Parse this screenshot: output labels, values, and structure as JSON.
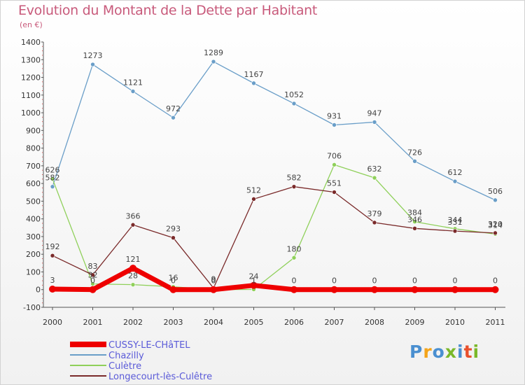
{
  "title": "Evolution du Montant de la Dette par Habitant",
  "subtitle": "(en €)",
  "logo": {
    "text": "Proxiti",
    "colors": [
      "#4a8fd0",
      "#f4a41a",
      "#4a8fd0",
      "#7ab829",
      "#4a8fd0",
      "#e8502d",
      "#7ab829"
    ]
  },
  "chart_data": {
    "type": "line",
    "x": [
      "2000",
      "2001",
      "2002",
      "2003",
      "2004",
      "2005",
      "2006",
      "2007",
      "2008",
      "2009",
      "2010",
      "2011"
    ],
    "ylim": [
      -100,
      1400
    ],
    "yticks": [
      -100,
      0,
      100,
      200,
      300,
      400,
      500,
      600,
      700,
      800,
      900,
      1000,
      1100,
      1200,
      1300,
      1400
    ],
    "grid": false,
    "legend_position": "bottom",
    "series": [
      {
        "name": "Chazilly",
        "color": "#6a9ec8",
        "values": [
          582,
          1273,
          1121,
          972,
          1289,
          1167,
          1052,
          931,
          947,
          726,
          612,
          506
        ]
      },
      {
        "name": "Culètre",
        "color": "#8fd05a",
        "values": [
          626,
          32,
          28,
          16,
          0,
          1,
          180,
          706,
          632,
          384,
          344,
          314
        ]
      },
      {
        "name": "Longecourt-lès-Culêtre",
        "color": "#7a2a2a",
        "values": [
          192,
          83,
          366,
          293,
          9,
          512,
          582,
          551,
          379,
          346,
          331,
          320
        ]
      },
      {
        "name": "CUSSY-LE-CHâTEL",
        "color": "#ee0000",
        "values": [
          3,
          0,
          121,
          0,
          0,
          24,
          0,
          0,
          0,
          0,
          0,
          0
        ]
      }
    ]
  }
}
